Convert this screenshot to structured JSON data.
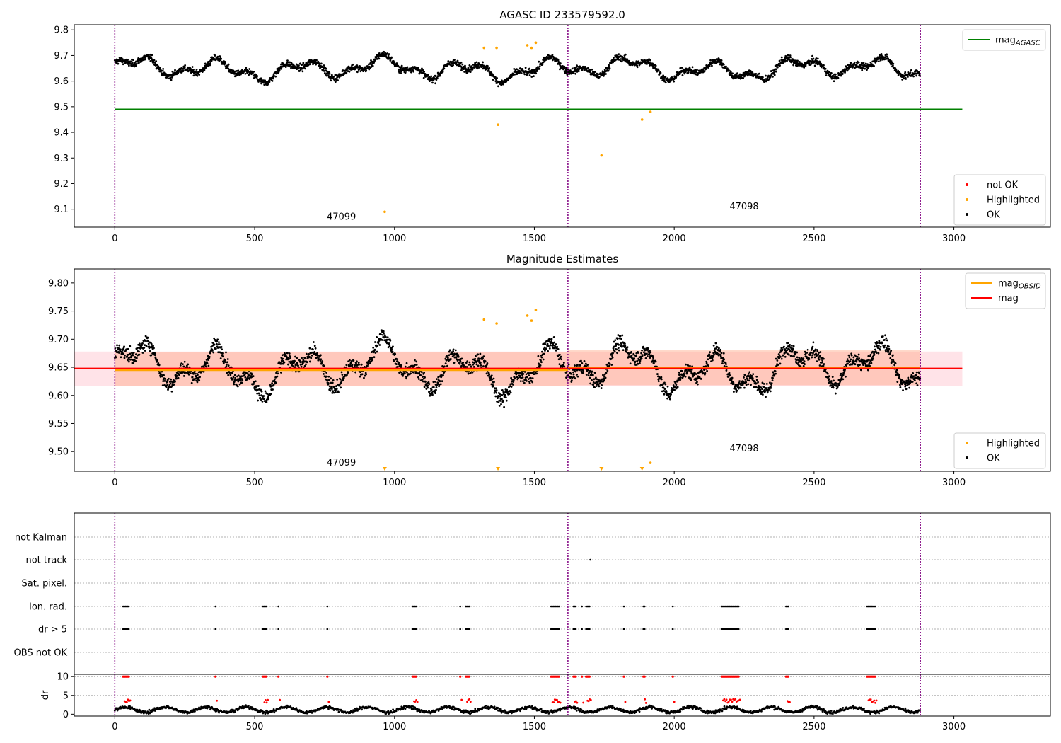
{
  "colors": {
    "ok": "#000000",
    "highlighted": "#ffa500",
    "not_ok": "#ff0000",
    "mag_agasc": "#008000",
    "mag_obsid": "#ffa500",
    "mag": "#ff0000",
    "band_pink": "#ffc0cb",
    "band_salmon": "#ffa07a",
    "obs_boundary": "#800080",
    "grid": "#b0b0b0"
  },
  "chart_data": [
    {
      "type": "scatter",
      "title": "AGASC ID 233579592.0",
      "xlim": [
        -145,
        3345
      ],
      "ylim": [
        9.03,
        9.82
      ],
      "xticks": [
        0,
        500,
        1000,
        1500,
        2000,
        2500,
        3000
      ],
      "yticks": [
        9.1,
        9.2,
        9.3,
        9.4,
        9.5,
        9.6,
        9.7,
        9.8
      ],
      "obs_boundaries": [
        0,
        1620,
        2880
      ],
      "obs_labels": [
        {
          "text": "47099",
          "x": 810,
          "y": 9.07
        },
        {
          "text": "47098",
          "x": 2250,
          "y": 9.11
        }
      ],
      "lines": [
        {
          "name": "mag_AGASC",
          "y": 9.49,
          "x": [
            0,
            3030
          ]
        }
      ],
      "legend": {
        "top": [
          {
            "label": "mag",
            "sub": "AGASC",
            "kind": "line",
            "color_key": "mag_agasc"
          }
        ],
        "bottom": [
          {
            "label": "not OK",
            "kind": "dot",
            "color_key": "not_ok"
          },
          {
            "label": "Highlighted",
            "kind": "dot",
            "color_key": "highlighted"
          },
          {
            "label": "OK",
            "kind": "dot",
            "color_key": "ok"
          }
        ]
      },
      "highlighted": [
        [
          965,
          9.09
        ],
        [
          1320,
          9.73
        ],
        [
          1365,
          9.73
        ],
        [
          1370,
          9.43
        ],
        [
          1475,
          9.74
        ],
        [
          1490,
          9.73
        ],
        [
          1505,
          9.75
        ],
        [
          1740,
          9.31
        ],
        [
          1885,
          9.45
        ],
        [
          1915,
          9.48
        ]
      ],
      "ok_points": {
        "segments": [
          [
            0,
            1620
          ],
          [
            1620,
            2880
          ]
        ],
        "count": 2500,
        "mean": 9.648
      }
    },
    {
      "type": "scatter",
      "title": "Magnitude Estimates",
      "xlim": [
        -145,
        3345
      ],
      "ylim": [
        9.465,
        9.825
      ],
      "xticks": [
        0,
        500,
        1000,
        1500,
        2000,
        2500,
        3000
      ],
      "yticks": [
        9.5,
        9.55,
        9.6,
        9.65,
        9.7,
        9.75,
        9.8
      ],
      "ytick_labels": [
        "9.50",
        "9.55",
        "9.60",
        "9.65",
        "9.70",
        "9.75",
        "9.80"
      ],
      "obs_boundaries": [
        0,
        1620,
        2880
      ],
      "obs_labels": [
        {
          "text": "47099",
          "x": 810,
          "y": 9.48
        },
        {
          "text": "47098",
          "x": 2250,
          "y": 9.505
        }
      ],
      "mag": {
        "value": 9.648,
        "band": [
          9.617,
          9.678
        ],
        "x": [
          -145,
          3030
        ]
      },
      "mag_obsid": [
        {
          "x": [
            0,
            1620
          ],
          "value": 9.645,
          "band": [
            9.617,
            9.677
          ]
        },
        {
          "x": [
            1620,
            2880
          ],
          "value": 9.649,
          "band": [
            9.618,
            9.681
          ]
        }
      ],
      "legend": {
        "top": [
          {
            "label": "mag",
            "sub": "OBSID",
            "kind": "line",
            "color_key": "mag_obsid"
          },
          {
            "label": "mag",
            "kind": "line",
            "color_key": "mag"
          }
        ],
        "bottom": [
          {
            "label": "Highlighted",
            "kind": "dot",
            "color_key": "highlighted"
          },
          {
            "label": "OK",
            "kind": "dot",
            "color_key": "ok"
          }
        ]
      },
      "highlighted": [
        [
          1320,
          9.735
        ],
        [
          1365,
          9.728
        ],
        [
          1475,
          9.742
        ],
        [
          1490,
          9.733
        ],
        [
          1505,
          9.752
        ],
        [
          1915,
          9.48
        ]
      ],
      "below_range": [
        965,
        1370,
        1740,
        1885
      ],
      "ok_points": {
        "segments": [
          [
            0,
            1620
          ],
          [
            1620,
            2880
          ]
        ],
        "count": 2500,
        "mean": 9.648
      }
    },
    {
      "type": "scatter",
      "title": "",
      "xlim": [
        -145,
        3345
      ],
      "categories": [
        "not Kalman",
        "not track",
        "Sat. pixel.",
        "Ion. rad.",
        "dr > 5",
        "OBS not OK"
      ],
      "obs_boundaries": [
        0,
        1620,
        2880
      ],
      "flags": {
        "not Kalman": [],
        "not track": [
          1700
        ],
        "Sat. pixel.": [],
        "Ion. rad.": [
          [
            30,
            50
          ],
          [
            360,
            362
          ],
          [
            530,
            545
          ],
          [
            585,
            587
          ],
          [
            760,
            762
          ],
          [
            1065,
            1080
          ],
          [
            1235,
            1237
          ],
          [
            1255,
            1270
          ],
          [
            1560,
            1590
          ],
          [
            1640,
            1650
          ],
          [
            1670,
            1672
          ],
          [
            1685,
            1700
          ],
          [
            1820,
            1822
          ],
          [
            1890,
            1895
          ],
          [
            1995,
            1997
          ],
          [
            2170,
            2230
          ],
          [
            2400,
            2410
          ],
          [
            2690,
            2720
          ]
        ],
        "dr > 5": [
          [
            30,
            50
          ],
          [
            360,
            362
          ],
          [
            530,
            545
          ],
          [
            585,
            587
          ],
          [
            760,
            762
          ],
          [
            1065,
            1080
          ],
          [
            1235,
            1237
          ],
          [
            1255,
            1270
          ],
          [
            1560,
            1590
          ],
          [
            1640,
            1650
          ],
          [
            1670,
            1672
          ],
          [
            1685,
            1700
          ],
          [
            1820,
            1822
          ],
          [
            1890,
            1895
          ],
          [
            1995,
            1997
          ],
          [
            2170,
            2230
          ],
          [
            2400,
            2410
          ],
          [
            2690,
            2720
          ]
        ],
        "OBS not OK": []
      }
    },
    {
      "type": "scatter",
      "ylabel": "dr",
      "xlim": [
        -145,
        3345
      ],
      "ylim": [
        -0.5,
        10.6
      ],
      "xticks": [
        0,
        500,
        1000,
        1500,
        2000,
        2500,
        3000
      ],
      "yticks": [
        0,
        5,
        10
      ],
      "obs_boundaries": [
        0,
        1620,
        2880
      ],
      "clip_at": 10,
      "typical_dr": [
        0.5,
        2.2
      ],
      "note": "dr points above 5 are shown red and clipped at 10"
    }
  ]
}
